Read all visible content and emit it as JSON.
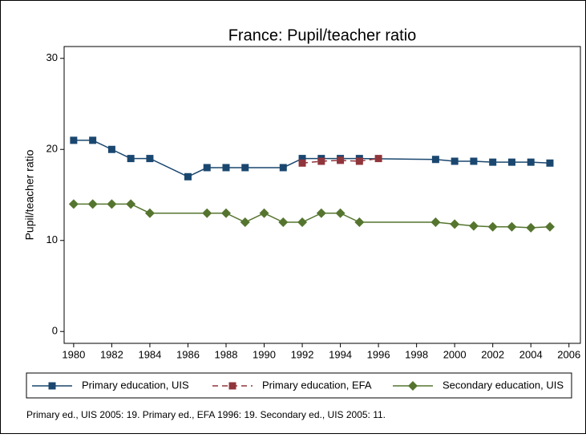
{
  "chart_data": {
    "type": "line",
    "title": "France: Pupil/teacher ratio",
    "y_label": "Pupil/teacher ratio",
    "note": "Primary ed., UIS 2005: 19. Primary ed., EFA 1996: 19. Secondary ed., UIS 2005: 11.",
    "xlim": [
      1979.5,
      2006.6
    ],
    "xticks": [
      1980,
      1982,
      1984,
      1986,
      1988,
      1990,
      1992,
      1994,
      1996,
      1998,
      2000,
      2002,
      2004,
      2006
    ],
    "ylim": [
      -1.3,
      31.3
    ],
    "yticks": [
      0,
      10,
      20,
      30
    ],
    "series": [
      {
        "name": "Primary education, UIS",
        "color": "#1a476f",
        "marker": "square",
        "dash": false,
        "x": [
          1980,
          1981,
          1982,
          1983,
          1984,
          1986,
          1987,
          1988,
          1989,
          1991,
          1992,
          1993,
          1994,
          1995,
          1999,
          2000,
          2001,
          2002,
          2003,
          2004,
          2005
        ],
        "values": [
          21,
          21,
          20,
          19,
          19,
          17,
          18,
          18,
          18,
          18,
          19,
          19,
          19,
          19,
          18.9,
          18.7,
          18.7,
          18.6,
          18.6,
          18.6,
          18.5
        ]
      },
      {
        "name": "Primary education, EFA",
        "color": "#90353b",
        "marker": "square",
        "dash": true,
        "x": [
          1992,
          1993,
          1994,
          1995,
          1996
        ],
        "values": [
          18.5,
          18.7,
          18.8,
          18.7,
          19
        ]
      },
      {
        "name": "Secondary education, UIS",
        "color": "#55752f",
        "marker": "diamond",
        "dash": false,
        "x": [
          1980,
          1981,
          1982,
          1983,
          1984,
          1987,
          1988,
          1989,
          1990,
          1991,
          1992,
          1993,
          1994,
          1995,
          1999,
          2000,
          2001,
          2002,
          2003,
          2004,
          2005
        ],
        "values": [
          14,
          14,
          14,
          14,
          13,
          13,
          13,
          12,
          13,
          12,
          12,
          13,
          13,
          12,
          12,
          11.8,
          11.6,
          11.5,
          11.5,
          11.4,
          11.5
        ]
      }
    ]
  }
}
